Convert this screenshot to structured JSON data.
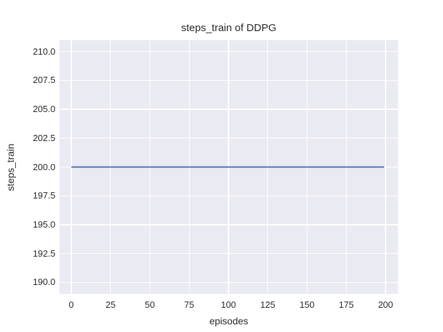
{
  "style": {
    "plot_background": "#eaeaf2",
    "grid_color": "#ffffff",
    "text_color": "#262626",
    "line_color": "#4c72b0"
  },
  "chart_data": {
    "type": "line",
    "title": "steps_train of DDPG",
    "xlabel": "episodes",
    "ylabel": "steps_train",
    "x_ticks": [
      0,
      25,
      50,
      75,
      100,
      125,
      150,
      175,
      200
    ],
    "x_tick_labels": [
      "0",
      "25",
      "50",
      "75",
      "100",
      "125",
      "150",
      "175",
      "200"
    ],
    "y_ticks": [
      190.0,
      192.5,
      195.0,
      197.5,
      200.0,
      202.5,
      205.0,
      207.5,
      210.0
    ],
    "y_tick_labels": [
      "190.0",
      "192.5",
      "195.0",
      "197.5",
      "200.0",
      "202.5",
      "205.0",
      "207.5",
      "210.0"
    ],
    "xlim": [
      -7.5,
      207.9
    ],
    "ylim": [
      189.0,
      211.0
    ],
    "grid": true,
    "legend": "none",
    "series": [
      {
        "name": "steps_train",
        "color": "#4c72b0",
        "x": [
          0,
          199
        ],
        "y": [
          200,
          200
        ],
        "note_constant_value": 200
      }
    ]
  }
}
